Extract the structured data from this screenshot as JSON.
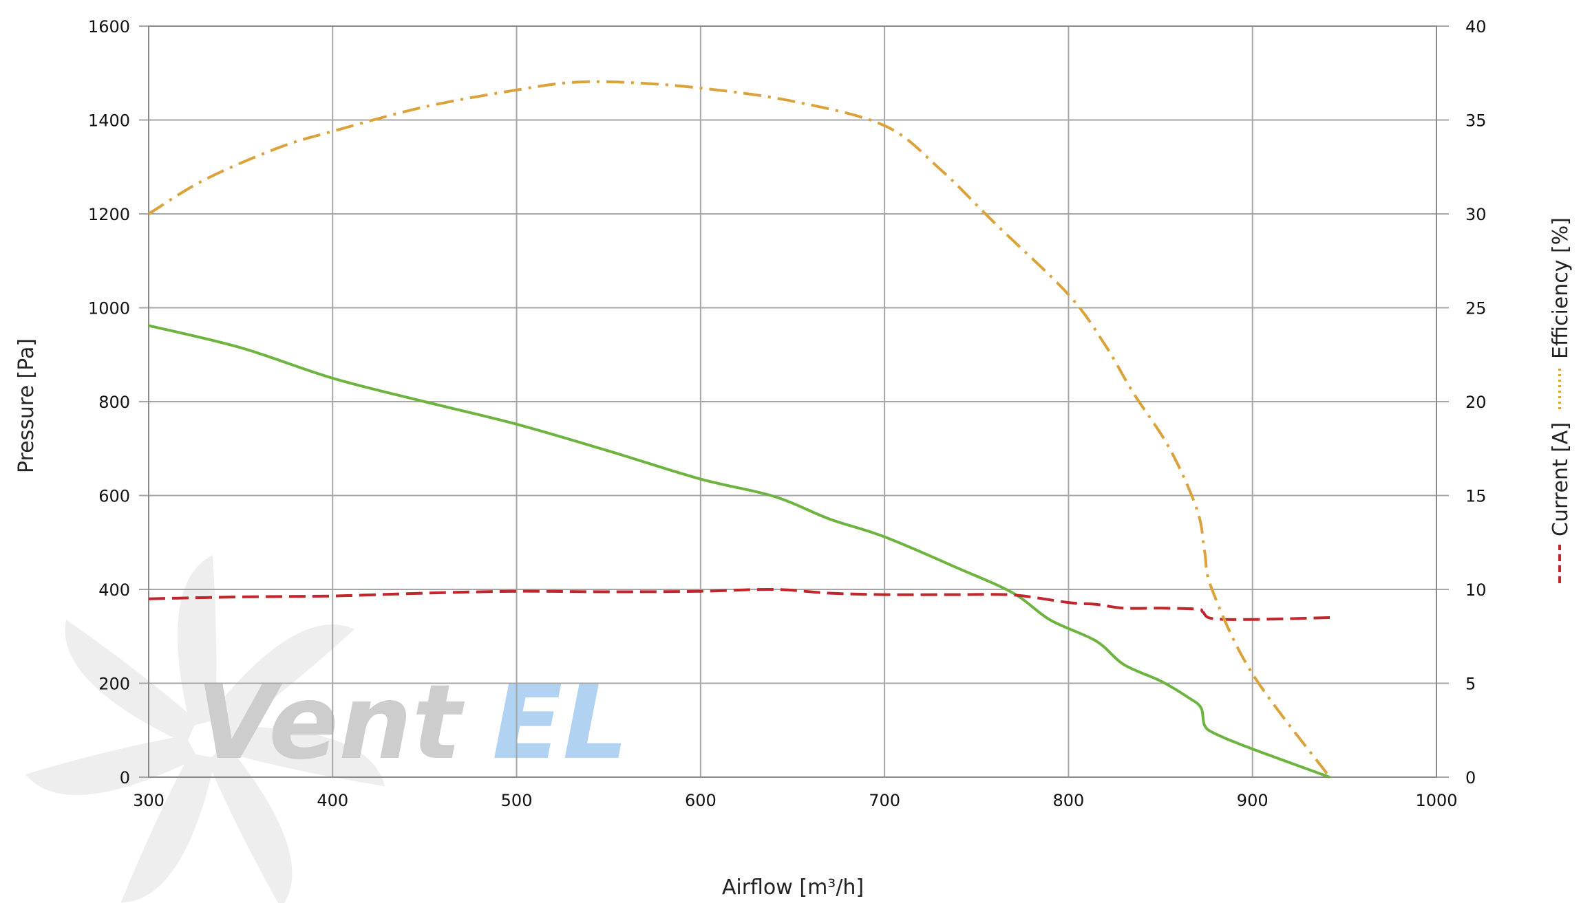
{
  "chart_data": {
    "type": "line",
    "xlabel": "Airflow [m³/h]",
    "ylabel": "Pressure [Pa]",
    "y2labels": [
      "Current [A]",
      "Efficiency [%]"
    ],
    "xlim": [
      300,
      1000
    ],
    "ylim": [
      0,
      1600
    ],
    "y2lim": [
      0,
      40
    ],
    "x_ticks": [
      "300",
      "400",
      "500",
      "600",
      "700",
      "800",
      "900",
      "1000"
    ],
    "y_ticks": [
      "0",
      "200",
      "400",
      "600",
      "800",
      "1000",
      "1200",
      "1400",
      "1600"
    ],
    "y2_ticks": [
      "0",
      "5",
      "10",
      "15",
      "20",
      "25",
      "30",
      "35",
      "40"
    ],
    "grid": true,
    "series": [
      {
        "name": "",
        "axis": "left",
        "style": "solid",
        "color": "#6db33f",
        "x": [
          300,
          350,
          400,
          450,
          500,
          550,
          600,
          640,
          670,
          700,
          740,
          770,
          790,
          815,
          830,
          850,
          865,
          872,
          874,
          880,
          900,
          942
        ],
        "y": [
          962,
          915,
          850,
          800,
          752,
          695,
          635,
          598,
          550,
          512,
          445,
          392,
          335,
          290,
          240,
          205,
          170,
          148,
          110,
          92,
          60,
          0
        ]
      },
      {
        "name": "Current [A]",
        "axis": "right",
        "style": "dashed",
        "color": "#c0262c",
        "x": [
          300,
          350,
          400,
          450,
          500,
          550,
          600,
          640,
          670,
          700,
          740,
          770,
          800,
          815,
          830,
          850,
          870,
          873,
          878,
          900,
          942
        ],
        "y": [
          9.5,
          9.6,
          9.65,
          9.8,
          9.9,
          9.87,
          9.9,
          10.0,
          9.8,
          9.72,
          9.72,
          9.7,
          9.3,
          9.2,
          9.0,
          9.0,
          8.95,
          8.8,
          8.45,
          8.4,
          8.5
        ]
      },
      {
        "name": "Efficiency [%]",
        "axis": "right",
        "style": "dash-dot",
        "color": "#dca23a",
        "x": [
          300,
          330,
          370,
          400,
          450,
          500,
          530,
          560,
          600,
          650,
          700,
          730,
          760,
          800,
          820,
          835,
          855,
          870,
          874,
          878,
          900,
          942
        ],
        "y": [
          30,
          31.8,
          33.5,
          34.4,
          35.7,
          36.6,
          37.0,
          37.0,
          36.7,
          36.0,
          34.7,
          32.4,
          29.5,
          25.7,
          23.0,
          20.5,
          17.5,
          14.2,
          12.0,
          10.0,
          5.5,
          0
        ]
      }
    ]
  },
  "legend": {
    "current_label": "Current [A]",
    "efficiency_label": "Efficiency [%]"
  },
  "watermark": {
    "text": "VentEL",
    "colors": {
      "vent": "#c8c8c8",
      "el": "#a9cdef",
      "blades": "#ececec"
    }
  }
}
